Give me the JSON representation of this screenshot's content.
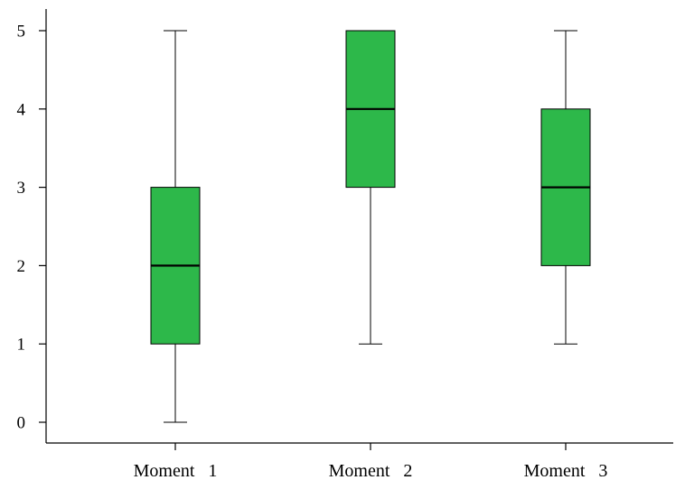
{
  "chart_data": {
    "type": "boxplot",
    "title": "",
    "xlabel": "",
    "ylabel": "",
    "ylim": [
      0,
      5
    ],
    "yticks": [
      0,
      1,
      2,
      3,
      4,
      5
    ],
    "ytick_labels": [
      "0",
      "1",
      "2",
      "3",
      "4",
      "5"
    ],
    "grid": false,
    "legend": "none",
    "categories": [
      "Moment   1",
      "Moment   2",
      "Moment   3"
    ],
    "boxes": [
      {
        "min": 0,
        "q1": 1,
        "median": 2,
        "q3": 3,
        "max": 5
      },
      {
        "min": 1,
        "q1": 3,
        "median": 4,
        "q3": 5,
        "max": 5
      },
      {
        "min": 1,
        "q1": 2,
        "median": 3,
        "q3": 4,
        "max": 5
      }
    ],
    "colors": {
      "box_fill": "#2db84a",
      "box_stroke": "#000000",
      "axis": "#000000"
    }
  }
}
